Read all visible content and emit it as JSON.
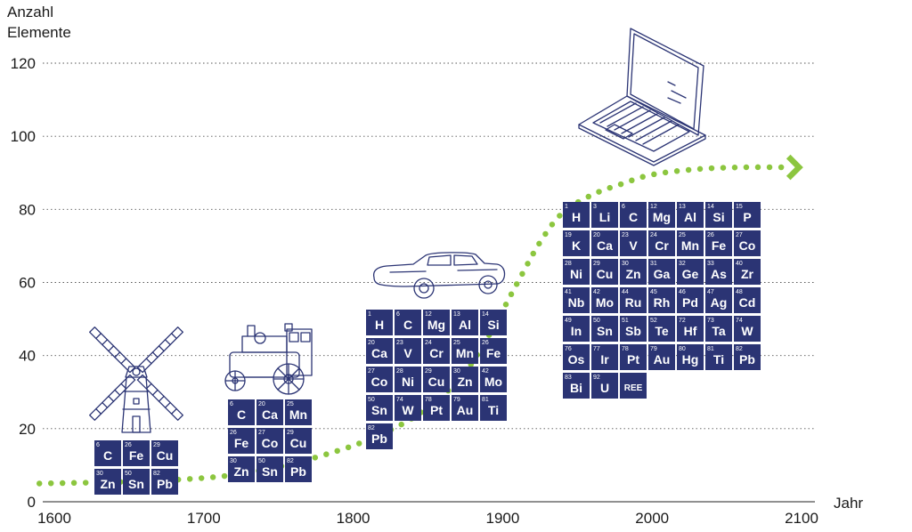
{
  "colors": {
    "tile": "#2b3474",
    "tile_text": "#ffffff",
    "curve": "#8cc63f",
    "grid": "#555555",
    "illustration": "#2b3474"
  },
  "chart_data": {
    "type": "line",
    "ylabel": "Anzahl Elemente",
    "xlabel": "Jahr",
    "xlim": [
      1600,
      2100
    ],
    "ylim": [
      0,
      120
    ],
    "xticks": [
      "1600",
      "1700",
      "1800",
      "1900",
      "2000",
      "2100"
    ],
    "yticks": [
      "0",
      "20",
      "40",
      "60",
      "80",
      "100",
      "120"
    ],
    "grid": "horizontal dotted",
    "series": [
      {
        "style": "dotted green with arrowhead",
        "x": [
          1590,
          1650,
          1700,
          1730,
          1760,
          1790,
          1810,
          1840,
          1870,
          1890,
          1910,
          1925,
          1940,
          1960,
          1980,
          2000,
          2030,
          2060,
          2090
        ],
        "y": [
          5,
          5.5,
          6.5,
          8,
          10.5,
          14,
          17,
          23,
          33,
          45,
          60,
          71,
          79,
          84,
          87,
          89.5,
          91,
          91.5,
          91.5
        ]
      }
    ],
    "annotations": [
      {
        "era": "windmill",
        "illustration": "windmill-icon",
        "elements": [
          {
            "number": "6",
            "symbol": "C"
          },
          {
            "number": "26",
            "symbol": "Fe"
          },
          {
            "number": "29",
            "symbol": "Cu"
          },
          {
            "number": "30",
            "symbol": "Zn"
          },
          {
            "number": "50",
            "symbol": "Sn"
          },
          {
            "number": "82",
            "symbol": "Pb"
          }
        ]
      },
      {
        "era": "steam engine",
        "illustration": "steam-engine-icon",
        "elements": [
          {
            "number": "6",
            "symbol": "C"
          },
          {
            "number": "20",
            "symbol": "Ca"
          },
          {
            "number": "25",
            "symbol": "Mn"
          },
          {
            "number": "26",
            "symbol": "Fe"
          },
          {
            "number": "27",
            "symbol": "Co"
          },
          {
            "number": "29",
            "symbol": "Cu"
          },
          {
            "number": "30",
            "symbol": "Zn"
          },
          {
            "number": "50",
            "symbol": "Sn"
          },
          {
            "number": "82",
            "symbol": "Pb"
          }
        ]
      },
      {
        "era": "car",
        "illustration": "car-icon",
        "elements": [
          {
            "number": "1",
            "symbol": "H"
          },
          {
            "number": "6",
            "symbol": "C"
          },
          {
            "number": "12",
            "symbol": "Mg"
          },
          {
            "number": "13",
            "symbol": "Al"
          },
          {
            "number": "14",
            "symbol": "Si"
          },
          {
            "number": "20",
            "symbol": "Ca"
          },
          {
            "number": "23",
            "symbol": "V"
          },
          {
            "number": "24",
            "symbol": "Cr"
          },
          {
            "number": "25",
            "symbol": "Mn"
          },
          {
            "number": "26",
            "symbol": "Fe"
          },
          {
            "number": "27",
            "symbol": "Co"
          },
          {
            "number": "28",
            "symbol": "Ni"
          },
          {
            "number": "29",
            "symbol": "Cu"
          },
          {
            "number": "30",
            "symbol": "Zn"
          },
          {
            "number": "42",
            "symbol": "Mo"
          },
          {
            "number": "50",
            "symbol": "Sn"
          },
          {
            "number": "74",
            "symbol": "W"
          },
          {
            "number": "78",
            "symbol": "Pt"
          },
          {
            "number": "79",
            "symbol": "Au"
          },
          {
            "number": "81",
            "symbol": "Ti"
          },
          {
            "number": "82",
            "symbol": "Pb"
          }
        ]
      },
      {
        "era": "laptop",
        "illustration": "laptop-icon",
        "elements": [
          {
            "number": "1",
            "symbol": "H"
          },
          {
            "number": "3",
            "symbol": "Li"
          },
          {
            "number": "6",
            "symbol": "C"
          },
          {
            "number": "12",
            "symbol": "Mg"
          },
          {
            "number": "13",
            "symbol": "Al"
          },
          {
            "number": "14",
            "symbol": "Si"
          },
          {
            "number": "15",
            "symbol": "P"
          },
          {
            "number": "19",
            "symbol": "K"
          },
          {
            "number": "20",
            "symbol": "Ca"
          },
          {
            "number": "23",
            "symbol": "V"
          },
          {
            "number": "24",
            "symbol": "Cr"
          },
          {
            "number": "25",
            "symbol": "Mn"
          },
          {
            "number": "26",
            "symbol": "Fe"
          },
          {
            "number": "27",
            "symbol": "Co"
          },
          {
            "number": "28",
            "symbol": "Ni"
          },
          {
            "number": "29",
            "symbol": "Cu"
          },
          {
            "number": "30",
            "symbol": "Zn"
          },
          {
            "number": "31",
            "symbol": "Ga"
          },
          {
            "number": "32",
            "symbol": "Ge"
          },
          {
            "number": "33",
            "symbol": "As"
          },
          {
            "number": "40",
            "symbol": "Zr"
          },
          {
            "number": "41",
            "symbol": "Nb"
          },
          {
            "number": "42",
            "symbol": "Mo"
          },
          {
            "number": "44",
            "symbol": "Ru"
          },
          {
            "number": "45",
            "symbol": "Rh"
          },
          {
            "number": "46",
            "symbol": "Pd"
          },
          {
            "number": "47",
            "symbol": "Ag"
          },
          {
            "number": "48",
            "symbol": "Cd"
          },
          {
            "number": "49",
            "symbol": "In"
          },
          {
            "number": "50",
            "symbol": "Sn"
          },
          {
            "number": "51",
            "symbol": "Sb"
          },
          {
            "number": "52",
            "symbol": "Te"
          },
          {
            "number": "72",
            "symbol": "Hf"
          },
          {
            "number": "73",
            "symbol": "Ta"
          },
          {
            "number": "74",
            "symbol": "W"
          },
          {
            "number": "76",
            "symbol": "Os"
          },
          {
            "number": "77",
            "symbol": "Ir"
          },
          {
            "number": "78",
            "symbol": "Pt"
          },
          {
            "number": "79",
            "symbol": "Au"
          },
          {
            "number": "80",
            "symbol": "Hg"
          },
          {
            "number": "81",
            "symbol": "Ti"
          },
          {
            "number": "82",
            "symbol": "Pb"
          },
          {
            "number": "83",
            "symbol": "Bi"
          },
          {
            "number": "92",
            "symbol": "U"
          },
          {
            "number": "",
            "symbol": "REE"
          }
        ]
      }
    ]
  }
}
